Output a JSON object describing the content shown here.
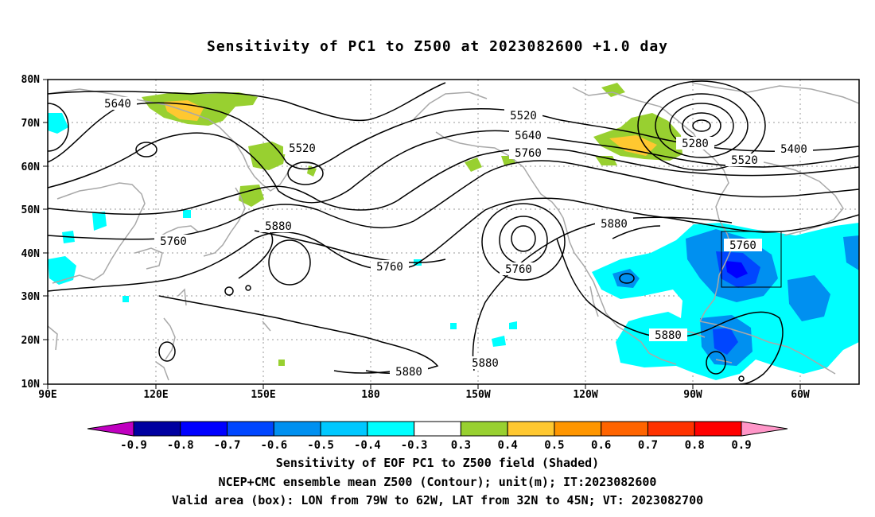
{
  "title": "Sensitivity of PC1 to Z500 at 2023082600 +1.0 day",
  "lat_labels": [
    "80N",
    "70N",
    "60N",
    "50N",
    "40N",
    "30N",
    "20N",
    "10N"
  ],
  "lon_labels": [
    "90E",
    "120E",
    "150E",
    "180",
    "150W",
    "120W",
    "90W",
    "60W"
  ],
  "contour_labels": [
    "5640",
    "5520",
    "5520",
    "5640",
    "5760",
    "5280",
    "5400",
    "5520",
    "5760",
    "5880",
    "5760",
    "5760",
    "5880",
    "5880",
    "5880",
    "5760",
    "5880"
  ],
  "colorbar": {
    "labels": [
      "-0.9",
      "-0.8",
      "-0.7",
      "-0.6",
      "-0.5",
      "-0.4",
      "-0.3",
      "0.3",
      "0.4",
      "0.5",
      "0.6",
      "0.7",
      "0.8",
      "0.9"
    ],
    "colors": [
      "#c000c0",
      "#0000a0",
      "#0000ff",
      "#0046ff",
      "#0090f0",
      "#00c8ff",
      "#00ffff",
      "#ffffff",
      "#98d030",
      "#ffc830",
      "#ff9600",
      "#ff6400",
      "#ff3200",
      "#ff0000",
      "#ff96c8"
    ]
  },
  "valid_box": {
    "lon_west": "79W",
    "lon_east": "62W",
    "lat_south": "32N",
    "lat_north": "45N"
  },
  "captions": [
    "Sensitivity of EOF PC1 to Z500 field (Shaded)",
    "NCEP+CMC ensemble mean Z500 (Contour); unit(m); IT:2023082600",
    "Valid area (box): LON from 79W to 62W, LAT from 32N to 45N; VT: 2023082700"
  ]
}
